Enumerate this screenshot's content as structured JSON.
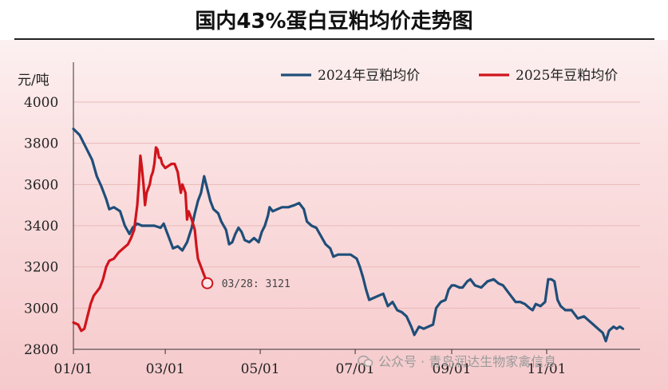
{
  "title": "国内43%蛋白豆粕均价走势图",
  "watermark": "公众号 · 青岛润达生物家禽信息",
  "chart_data": {
    "type": "line",
    "ylabel": "元/吨",
    "ylim": [
      2800,
      4000
    ],
    "yticks": [
      2800,
      3000,
      3200,
      3400,
      3600,
      3800,
      4000
    ],
    "xlim": [
      0,
      364
    ],
    "xticks": [
      {
        "label": "01/01",
        "day": 0
      },
      {
        "label": "03/01",
        "day": 59
      },
      {
        "label": "05/01",
        "day": 120
      },
      {
        "label": "07/01",
        "day": 181
      },
      {
        "label": "09/01",
        "day": 243
      },
      {
        "label": "11/01",
        "day": 304
      }
    ],
    "legend_position": "top-right",
    "series": [
      {
        "name": "2024年豆粕均价",
        "color": "#1f4e79",
        "points": [
          [
            0,
            3870
          ],
          [
            4,
            3840
          ],
          [
            8,
            3780
          ],
          [
            12,
            3720
          ],
          [
            15,
            3640
          ],
          [
            18,
            3590
          ],
          [
            21,
            3530
          ],
          [
            23,
            3480
          ],
          [
            26,
            3490
          ],
          [
            30,
            3470
          ],
          [
            33,
            3400
          ],
          [
            36,
            3360
          ],
          [
            38,
            3390
          ],
          [
            41,
            3410
          ],
          [
            44,
            3400
          ],
          [
            48,
            3400
          ],
          [
            52,
            3400
          ],
          [
            56,
            3390
          ],
          [
            58,
            3410
          ],
          [
            60,
            3370
          ],
          [
            62,
            3330
          ],
          [
            64,
            3290
          ],
          [
            67,
            3300
          ],
          [
            70,
            3280
          ],
          [
            73,
            3320
          ],
          [
            76,
            3390
          ],
          [
            78,
            3460
          ],
          [
            80,
            3520
          ],
          [
            82,
            3560
          ],
          [
            84,
            3640
          ],
          [
            86,
            3580
          ],
          [
            88,
            3520
          ],
          [
            90,
            3480
          ],
          [
            93,
            3460
          ],
          [
            95,
            3420
          ],
          [
            98,
            3380
          ],
          [
            100,
            3310
          ],
          [
            102,
            3320
          ],
          [
            104,
            3360
          ],
          [
            106,
            3390
          ],
          [
            108,
            3370
          ],
          [
            110,
            3330
          ],
          [
            113,
            3320
          ],
          [
            116,
            3340
          ],
          [
            119,
            3320
          ],
          [
            121,
            3370
          ],
          [
            123,
            3400
          ],
          [
            125,
            3450
          ],
          [
            126,
            3490
          ],
          [
            128,
            3470
          ],
          [
            131,
            3480
          ],
          [
            134,
            3490
          ],
          [
            138,
            3490
          ],
          [
            142,
            3500
          ],
          [
            145,
            3510
          ],
          [
            148,
            3480
          ],
          [
            150,
            3420
          ],
          [
            153,
            3400
          ],
          [
            156,
            3390
          ],
          [
            159,
            3350
          ],
          [
            162,
            3310
          ],
          [
            165,
            3290
          ],
          [
            167,
            3250
          ],
          [
            170,
            3260
          ],
          [
            174,
            3260
          ],
          [
            178,
            3260
          ],
          [
            182,
            3240
          ],
          [
            184,
            3200
          ],
          [
            186,
            3150
          ],
          [
            188,
            3090
          ],
          [
            190,
            3040
          ],
          [
            193,
            3050
          ],
          [
            196,
            3060
          ],
          [
            199,
            3070
          ],
          [
            202,
            3010
          ],
          [
            205,
            3030
          ],
          [
            208,
            2990
          ],
          [
            211,
            2980
          ],
          [
            214,
            2960
          ],
          [
            217,
            2910
          ],
          [
            219,
            2870
          ],
          [
            222,
            2910
          ],
          [
            225,
            2900
          ],
          [
            228,
            2910
          ],
          [
            231,
            2920
          ],
          [
            233,
            3000
          ],
          [
            236,
            3030
          ],
          [
            239,
            3040
          ],
          [
            241,
            3090
          ],
          [
            243,
            3110
          ],
          [
            245,
            3110
          ],
          [
            248,
            3100
          ],
          [
            250,
            3100
          ],
          [
            253,
            3130
          ],
          [
            255,
            3140
          ],
          [
            258,
            3110
          ],
          [
            262,
            3100
          ],
          [
            266,
            3130
          ],
          [
            270,
            3140
          ],
          [
            273,
            3120
          ],
          [
            276,
            3110
          ],
          [
            279,
            3080
          ],
          [
            281,
            3060
          ],
          [
            284,
            3030
          ],
          [
            287,
            3030
          ],
          [
            290,
            3020
          ],
          [
            293,
            3000
          ],
          [
            295,
            2990
          ],
          [
            297,
            3020
          ],
          [
            300,
            3010
          ],
          [
            303,
            3030
          ],
          [
            305,
            3140
          ],
          [
            307,
            3140
          ],
          [
            309,
            3130
          ],
          [
            311,
            3040
          ],
          [
            313,
            3010
          ],
          [
            316,
            2990
          ],
          [
            320,
            2990
          ],
          [
            324,
            2950
          ],
          [
            328,
            2960
          ],
          [
            331,
            2940
          ],
          [
            334,
            2920
          ],
          [
            337,
            2900
          ],
          [
            340,
            2880
          ],
          [
            342,
            2840
          ],
          [
            344,
            2890
          ],
          [
            347,
            2910
          ],
          [
            349,
            2900
          ],
          [
            351,
            2910
          ],
          [
            353,
            2900
          ]
        ]
      },
      {
        "name": "2025年豆粕均价",
        "color": "#d0141c",
        "points": [
          [
            0,
            2930
          ],
          [
            3,
            2920
          ],
          [
            5,
            2890
          ],
          [
            7,
            2900
          ],
          [
            9,
            2960
          ],
          [
            11,
            3020
          ],
          [
            13,
            3060
          ],
          [
            15,
            3080
          ],
          [
            17,
            3100
          ],
          [
            19,
            3140
          ],
          [
            21,
            3200
          ],
          [
            23,
            3230
          ],
          [
            26,
            3240
          ],
          [
            29,
            3270
          ],
          [
            32,
            3290
          ],
          [
            35,
            3310
          ],
          [
            37,
            3340
          ],
          [
            39,
            3380
          ],
          [
            41,
            3500
          ],
          [
            42,
            3600
          ],
          [
            43,
            3740
          ],
          [
            44,
            3680
          ],
          [
            45,
            3600
          ],
          [
            46,
            3500
          ],
          [
            47,
            3560
          ],
          [
            49,
            3600
          ],
          [
            50,
            3640
          ],
          [
            51,
            3660
          ],
          [
            52,
            3700
          ],
          [
            53,
            3780
          ],
          [
            54,
            3770
          ],
          [
            55,
            3730
          ],
          [
            56,
            3730
          ],
          [
            57,
            3700
          ],
          [
            59,
            3680
          ],
          [
            61,
            3690
          ],
          [
            63,
            3700
          ],
          [
            65,
            3700
          ],
          [
            67,
            3660
          ],
          [
            68,
            3610
          ],
          [
            69,
            3560
          ],
          [
            70,
            3600
          ],
          [
            72,
            3560
          ],
          [
            73,
            3430
          ],
          [
            74,
            3470
          ],
          [
            75,
            3450
          ],
          [
            76,
            3430
          ],
          [
            78,
            3380
          ],
          [
            79,
            3300
          ],
          [
            80,
            3240
          ],
          [
            82,
            3200
          ],
          [
            84,
            3160
          ],
          [
            86,
            3121
          ]
        ]
      }
    ],
    "annotation": {
      "text": "03/28: 3121",
      "day": 86,
      "value": 3121,
      "series": "2025年豆粕均价"
    }
  }
}
